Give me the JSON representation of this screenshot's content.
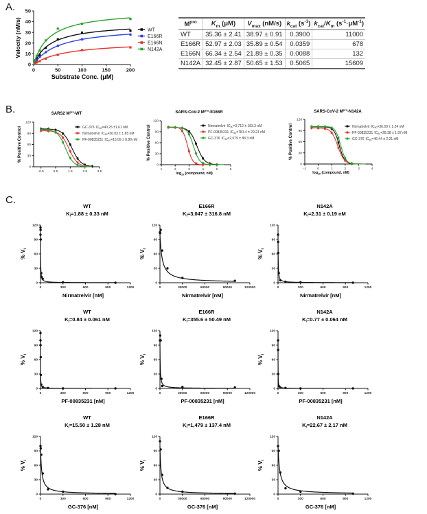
{
  "panel_labels": {
    "a": "A.",
    "b": "B.",
    "c": "C."
  },
  "table": {
    "headers": [
      [
        [
          "M",
          ""
        ],
        [
          "pro",
          "sup"
        ]
      ],
      [
        [
          "K",
          "i"
        ],
        [
          "m",
          "sub"
        ],
        [
          " (μM)",
          ""
        ]
      ],
      [
        [
          "V",
          "i"
        ],
        [
          "max",
          "sub"
        ],
        [
          " (nM/s)",
          ""
        ]
      ],
      [
        [
          "k",
          "i"
        ],
        [
          "cat",
          "sub"
        ],
        [
          " (s",
          ""
        ],
        [
          "-1",
          "sup"
        ],
        [
          ")",
          ""
        ]
      ],
      [
        [
          "k",
          "i"
        ],
        [
          "cat",
          "sub"
        ],
        [
          "/",
          ""
        ],
        [
          "K",
          "i"
        ],
        [
          "m",
          "sub"
        ],
        [
          " (s",
          ""
        ],
        [
          "-1",
          "sup"
        ],
        [
          "·μM",
          ""
        ],
        [
          "-1",
          "sup"
        ],
        [
          ")",
          ""
        ]
      ]
    ],
    "rows": [
      [
        "WT",
        "35.36 ± 2.41",
        "38.97 ± 0.91",
        "0.3900",
        "11000"
      ],
      [
        "E166R",
        "52.97 ± 2.03",
        "35.89 ± 0.54",
        "0.0359",
        "678"
      ],
      [
        "E166N",
        "66.34 ± 2.54",
        "21.89 ± 0.35",
        "0.0088",
        "132"
      ],
      [
        "N142A",
        "32.45 ± 2.87",
        "50.65 ± 1.53",
        "0.5065",
        "15609"
      ]
    ]
  },
  "chart_data": [
    {
      "type": "line",
      "panel": "A",
      "xlabel": "Substrate Conc. (μM)",
      "ylabel": "Velocity (nM/s)",
      "xlim": [
        0,
        200
      ],
      "ylim": [
        0,
        50
      ],
      "xticks": [
        "0",
        "50",
        "100",
        "150",
        "200"
      ],
      "yticks": [
        "0",
        "10",
        "20",
        "30",
        "40",
        "50"
      ],
      "legend": "right",
      "series": [
        {
          "name": "WT",
          "color": "#111111",
          "km": 35.36,
          "vmax": 38.97,
          "points": [
            [
              3.125,
              3
            ],
            [
              6.25,
              5.5
            ],
            [
              12.5,
              9
            ],
            [
              25,
              15.5
            ],
            [
              50,
              23.5
            ],
            [
              100,
              29.8
            ],
            [
              200,
              31.5
            ]
          ]
        },
        {
          "name": "E166R",
          "color": "#2a3fe0",
          "km": 52.97,
          "vmax": 35.89,
          "points": [
            [
              3.125,
              2
            ],
            [
              6.25,
              4
            ],
            [
              12.5,
              7
            ],
            [
              25,
              11.5
            ],
            [
              50,
              17.5
            ],
            [
              100,
              23.5
            ],
            [
              200,
              28
            ]
          ]
        },
        {
          "name": "E166N",
          "color": "#e8302a",
          "km": 66.34,
          "vmax": 21.89,
          "points": [
            [
              3.125,
              1
            ],
            [
              6.25,
              2
            ],
            [
              12.5,
              3
            ],
            [
              25,
              5.5
            ],
            [
              50,
              9
            ],
            [
              100,
              13.5
            ],
            [
              200,
              16
            ]
          ]
        },
        {
          "name": "N142A",
          "color": "#2aa12a",
          "km": 32.45,
          "vmax": 50.65,
          "points": [
            [
              3.125,
              4
            ],
            [
              6.25,
              8
            ],
            [
              12.5,
              13
            ],
            [
              25,
              22.5
            ],
            [
              50,
              33.5
            ],
            [
              100,
              38
            ],
            [
              200,
              42.5
            ]
          ]
        }
      ]
    },
    {
      "type": "line",
      "panel": "B",
      "title": [
        "SARS2 M",
        "pro",
        "-WT"
      ],
      "xlabel": null,
      "ylabel": "% Positive Control",
      "xlim": [
        -1,
        3.5
      ],
      "ylim": [
        0,
        120
      ],
      "xticks": [
        "-0.5",
        "0.5",
        "1.5",
        "2.5",
        "3.5"
      ],
      "yticks": [
        "0",
        "30",
        "60",
        "90",
        "120"
      ],
      "series": [
        {
          "name": "GC-376",
          "ic": "IC",
          "ic_sub": "50",
          "ic_value": "=40.25 ±1.61 nM",
          "color": "#111111",
          "log_ic50": 1.605,
          "hill": 1.4,
          "top": 102,
          "x_points": [
            -0.5,
            0,
            0.5,
            1,
            1.5,
            2,
            2.5,
            3
          ]
        },
        {
          "name": "Nirmatrelvir",
          "ic": "IC",
          "ic_sub": "50",
          "ic_value": "=26.03 ± 1.65 nM",
          "color": "#e8302a",
          "log_ic50": 1.415,
          "hill": 1.5,
          "top": 97,
          "x_points": [
            -0.5,
            0,
            0.5,
            1,
            1.5,
            2,
            2.5
          ]
        },
        {
          "name": "PF-00835231",
          "ic": "IC",
          "ic_sub": "50",
          "ic_value": "=15.09 ± 0.80 nM",
          "color": "#2aa12a",
          "log_ic50": 1.179,
          "hill": 1.6,
          "top": 100,
          "x_points": [
            -0.5,
            0,
            0.5,
            1,
            1.5,
            2,
            2.5
          ]
        }
      ]
    },
    {
      "type": "line",
      "panel": "B",
      "title": [
        "SARS-CoV-2 M",
        "pro",
        "-E166R"
      ],
      "xlabel": [
        "log",
        "10",
        " (compound, nM)"
      ],
      "ylabel": "% Positive Control",
      "xlim": [
        1,
        6
      ],
      "ylim": [
        0,
        120
      ],
      "xticks": [
        "1",
        "2",
        "3",
        "4",
        "5",
        "6"
      ],
      "yticks": [
        "0",
        "30",
        "60",
        "90",
        "120"
      ],
      "series": [
        {
          "name": "Nirmatrelvir",
          "ic": "IC",
          "ic_sub": "50",
          "ic_value": "=3,712 ± 183.3 nM",
          "color": "#111111",
          "log_ic50": 3.57,
          "hill": 1.6,
          "top": 102,
          "x_points": [
            1.5,
            2,
            2.5,
            3,
            3.5,
            4,
            4.5,
            5
          ]
        },
        {
          "name": "PF-00835231",
          "ic": "IC",
          "ic_sub": "50",
          "ic_value": "=781.4 ± 29.21 nM",
          "color": "#e8302a",
          "log_ic50": 2.893,
          "hill": 2.4,
          "top": 103,
          "x_points": [
            1.5,
            2,
            2.5,
            3,
            3.5,
            4,
            4.5,
            5
          ]
        },
        {
          "name": "GC-376",
          "ic": "IC",
          "ic_sub": "50",
          "ic_value": "=2,079 ± 88.3 nM",
          "color": "#2aa12a",
          "log_ic50": 3.318,
          "hill": 2.0,
          "top": 102,
          "x_points": [
            1.5,
            2,
            2.5,
            3,
            3.5,
            4,
            4.5,
            5
          ]
        }
      ]
    },
    {
      "type": "line",
      "panel": "B",
      "title": [
        "SARS-CoV-2 M",
        "pro",
        "-N142A"
      ],
      "xlabel": [
        "log",
        "10",
        " (compound, nM)"
      ],
      "ylabel": "% Positive Control",
      "xlim": [
        -1,
        4
      ],
      "ylim": [
        0,
        120
      ],
      "xticks": [
        "-1",
        "0",
        "1",
        "2",
        "3",
        "4"
      ],
      "yticks": [
        "0",
        "30",
        "60",
        "90",
        "120"
      ],
      "series": [
        {
          "name": "Nirmatrelvir",
          "ic": "IC",
          "ic_sub": "50",
          "ic_value": "=36.59 ± 1.24 nM",
          "color": "#111111",
          "log_ic50": 1.563,
          "hill": 2.2,
          "top": 100,
          "x_points": [
            -0.5,
            0,
            0.5,
            1,
            1.5,
            2,
            2.5
          ]
        },
        {
          "name": "PF-00835231",
          "ic": "IC",
          "ic_sub": "50",
          "ic_value": "=28.38 ± 1.97 nM",
          "color": "#e8302a",
          "log_ic50": 1.453,
          "hill": 1.8,
          "top": 97,
          "x_points": [
            -0.5,
            0,
            0.5,
            1,
            1.5,
            2,
            2.5
          ]
        },
        {
          "name": "GC-376",
          "ic": "IC",
          "ic_sub": "50",
          "ic_value": "=46.44 ± 2.21 nM",
          "color": "#2aa12a",
          "log_ic50": 1.667,
          "hill": 2.2,
          "top": 101,
          "x_points": [
            -0.5,
            0,
            0.5,
            1,
            1.5,
            2,
            2.5
          ]
        }
      ]
    },
    {
      "type": "line",
      "panel": "C",
      "title": "WT",
      "ki_symbol": "K",
      "ki_sub": "i",
      "ki_text": "=1.88 ± 0.33 nM",
      "ki": 1.88,
      "xlabel": "Nirmatrelvir [nM]",
      "ylabel": [
        "% V",
        "i"
      ],
      "xlim": [
        0,
        1200
      ],
      "ylim": [
        0,
        120
      ],
      "xticks": [
        "0",
        "300",
        "600",
        "900",
        "1200"
      ],
      "yticks": [
        "0",
        "30",
        "60",
        "90",
        "120"
      ],
      "points": [
        [
          0,
          100
        ],
        [
          0,
          115
        ],
        [
          1,
          110
        ],
        [
          3,
          90
        ],
        [
          10,
          20
        ],
        [
          15,
          12
        ],
        [
          30,
          8
        ],
        [
          300,
          1
        ],
        [
          1000,
          0
        ]
      ]
    },
    {
      "type": "line",
      "panel": "C",
      "title": "E166R",
      "ki_symbol": "K",
      "ki_sub": "i",
      "ki_text": "=3,047 ± 316.8 nM",
      "ki": 3047,
      "xlabel": "Nirmatrelvir [nM]",
      "ylabel": [
        "% V",
        "i"
      ],
      "xlim": [
        0,
        120000
      ],
      "ylim": [
        0,
        120
      ],
      "xticks": [
        "0",
        "30000",
        "60000",
        "90000",
        "120000"
      ],
      "yticks": [
        "0",
        "30",
        "60",
        "90",
        "120"
      ],
      "points": [
        [
          0,
          105
        ],
        [
          300,
          103
        ],
        [
          1000,
          110
        ],
        [
          3000,
          67
        ],
        [
          10000,
          30
        ],
        [
          30000,
          10
        ],
        [
          100000,
          4
        ]
      ]
    },
    {
      "type": "line",
      "panel": "C",
      "title": "N142A",
      "ki_symbol": "K",
      "ki_sub": "i",
      "ki_text": "=2.31 ± 0.19 nM",
      "ki": 2.31,
      "xlabel": "Nirmatrelvir [nM]",
      "ylabel": [
        "% V",
        "i"
      ],
      "xlim": [
        0,
        1200
      ],
      "ylim": [
        0,
        120
      ],
      "xticks": [
        "0",
        "300",
        "600",
        "900",
        "1200"
      ],
      "yticks": [
        "0",
        "30",
        "60",
        "90",
        "120"
      ],
      "points": [
        [
          0,
          100
        ],
        [
          1,
          85
        ],
        [
          3,
          62
        ],
        [
          10,
          20
        ],
        [
          30,
          5
        ],
        [
          100,
          2
        ],
        [
          300,
          1
        ],
        [
          1000,
          0
        ]
      ]
    },
    {
      "type": "line",
      "panel": "C",
      "title": "WT",
      "ki_symbol": "K",
      "ki_sub": "i",
      "ki_text": "=0.84 ± 0.061 nM",
      "ki": 0.84,
      "xlabel": "PF-00835231 [nM]",
      "ylabel": [
        "% V",
        "i"
      ],
      "xlim": [
        0,
        1200
      ],
      "ylim": [
        0,
        120
      ],
      "xticks": [
        "0",
        "300",
        "600",
        "900",
        "1200"
      ],
      "yticks": [
        "0",
        "30",
        "60",
        "90",
        "120"
      ],
      "points": [
        [
          0,
          100
        ],
        [
          0,
          115
        ],
        [
          1,
          90
        ],
        [
          3,
          65
        ],
        [
          5,
          28
        ],
        [
          10,
          8
        ],
        [
          30,
          3
        ],
        [
          100,
          1
        ],
        [
          300,
          0
        ],
        [
          1000,
          0
        ]
      ]
    },
    {
      "type": "line",
      "panel": "C",
      "title": "E166R",
      "ki_symbol": "K",
      "ki_sub": "i",
      "ki_text": "=355.6 ± 50.49 nM",
      "ki": 355.6,
      "xlabel": "PF-00835231 [nM]",
      "ylabel": [
        "% V",
        "i"
      ],
      "xlim": [
        0,
        120000
      ],
      "ylim": [
        0,
        120
      ],
      "xticks": [
        "0",
        "30000",
        "60000",
        "90000",
        "120000"
      ],
      "yticks": [
        "0",
        "30",
        "60",
        "90",
        "120"
      ],
      "points": [
        [
          0,
          100
        ],
        [
          300,
          110
        ],
        [
          1000,
          100
        ],
        [
          2000,
          20
        ],
        [
          3000,
          5
        ],
        [
          30000,
          3
        ],
        [
          100000,
          2
        ]
      ]
    },
    {
      "type": "line",
      "panel": "C",
      "title": "N142A",
      "ki_symbol": "K",
      "ki_sub": "i",
      "ki_text": "=0.77 ± 0.064 nM",
      "ki": 0.77,
      "xlabel": "PF-00835231 [nM]",
      "ylabel": [
        "% V",
        "i"
      ],
      "xlim": [
        0,
        1200
      ],
      "ylim": [
        0,
        120
      ],
      "xticks": [
        "0",
        "300",
        "600",
        "900",
        "1200"
      ],
      "yticks": [
        "0",
        "30",
        "60",
        "90",
        "120"
      ],
      "points": [
        [
          0,
          100
        ],
        [
          1,
          80
        ],
        [
          3,
          30
        ],
        [
          10,
          5
        ],
        [
          30,
          2
        ],
        [
          100,
          1
        ],
        [
          300,
          0
        ],
        [
          1000,
          0
        ]
      ]
    },
    {
      "type": "line",
      "panel": "C",
      "title": "WT",
      "ki_symbol": "K",
      "ki_sub": "i",
      "ki_text": "=15.50 ± 1.28 nM",
      "ki": 15.5,
      "xlabel": "GC-376 [nM]",
      "ylabel": [
        "% V",
        "i"
      ],
      "xlim": [
        0,
        1200
      ],
      "ylim": [
        0,
        120
      ],
      "xticks": [
        "0",
        "300",
        "600",
        "900",
        "1200"
      ],
      "yticks": [
        "0",
        "30",
        "60",
        "90",
        "120"
      ],
      "points": [
        [
          0,
          100
        ],
        [
          3,
          95
        ],
        [
          10,
          82
        ],
        [
          30,
          43
        ],
        [
          100,
          10
        ],
        [
          300,
          5
        ],
        [
          1000,
          0
        ]
      ]
    },
    {
      "type": "line",
      "panel": "C",
      "title": "E166R",
      "ki_symbol": "K",
      "ki_sub": "i",
      "ki_text": "=1,479 ± 137.4 nM",
      "ki": 1479,
      "xlabel": "GC-376 [nM]",
      "ylabel": [
        "% V",
        "i"
      ],
      "xlim": [
        0,
        120000
      ],
      "ylim": [
        0,
        120
      ],
      "xticks": [
        "0",
        "30000",
        "60000",
        "90000",
        "120000"
      ],
      "yticks": [
        "0",
        "30",
        "60",
        "90",
        "120"
      ],
      "points": [
        [
          0,
          110
        ],
        [
          1000,
          93
        ],
        [
          3000,
          40
        ],
        [
          10000,
          13
        ],
        [
          30000,
          5
        ],
        [
          100000,
          1
        ]
      ]
    },
    {
      "type": "line",
      "panel": "C",
      "title": "N142A",
      "ki_symbol": "K",
      "ki_sub": "i",
      "ki_text": "=22.67 ± 2.17 nM",
      "ki": 22.67,
      "xlabel": "GC-376 [nM]",
      "ylabel": [
        "% V",
        "i"
      ],
      "xlim": [
        0,
        1200
      ],
      "ylim": [
        0,
        120
      ],
      "xticks": [
        "0",
        "300",
        "600",
        "900",
        "1200"
      ],
      "yticks": [
        "0",
        "30",
        "60",
        "90",
        "120"
      ],
      "points": [
        [
          0,
          100
        ],
        [
          10,
          90
        ],
        [
          30,
          45
        ],
        [
          100,
          12
        ],
        [
          300,
          5
        ],
        [
          1000,
          1
        ]
      ]
    }
  ]
}
